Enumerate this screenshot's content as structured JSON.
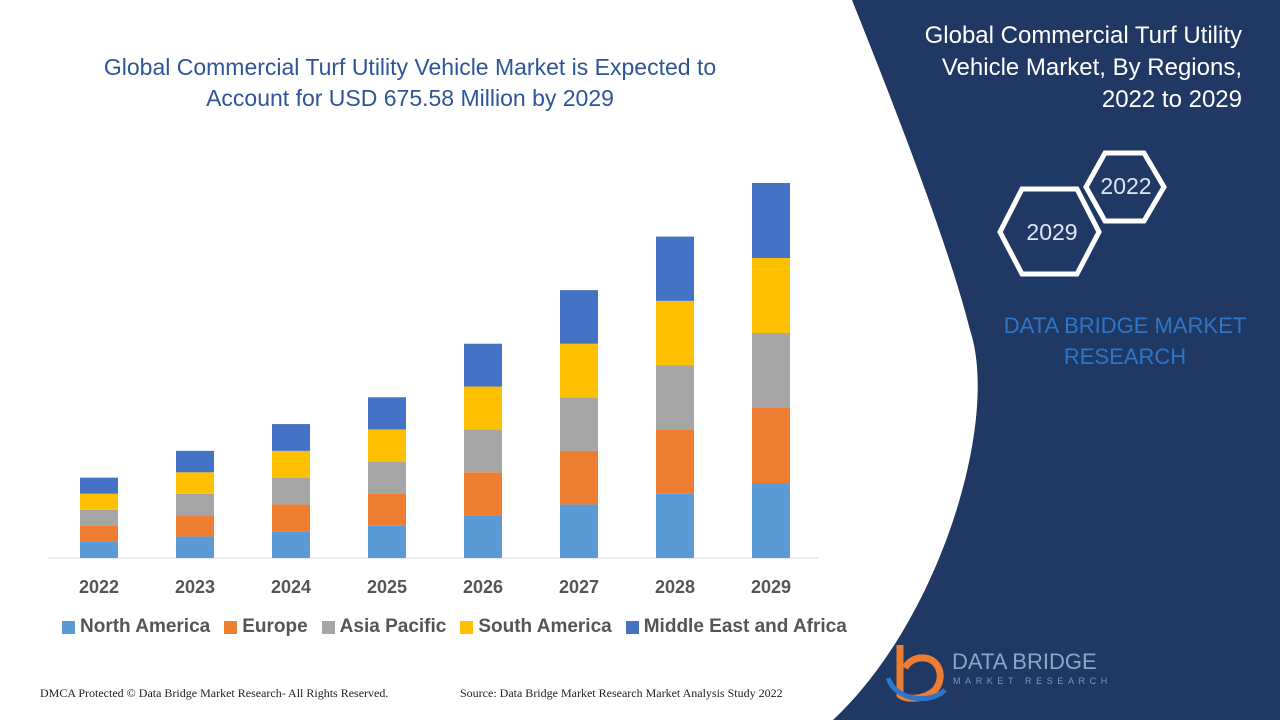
{
  "chart_data": {
    "type": "bar",
    "stacked": true,
    "title": "Global Commercial Turf Utility Vehicle Market is Expected to Account for USD 675.58 Million by 2029",
    "categories": [
      "2022",
      "2023",
      "2024",
      "2025",
      "2026",
      "2027",
      "2028",
      "2029"
    ],
    "series": [
      {
        "name": "North America",
        "color": "#5b9bd5",
        "values": [
          15,
          20,
          25,
          30,
          40,
          50,
          60,
          70
        ]
      },
      {
        "name": "Europe",
        "color": "#ed7d31",
        "values": [
          15,
          20,
          25,
          30,
          40,
          50,
          60,
          70
        ]
      },
      {
        "name": "Asia Pacific",
        "color": "#a5a5a5",
        "values": [
          15,
          20,
          25,
          30,
          40,
          50,
          60,
          70
        ]
      },
      {
        "name": "South America",
        "color": "#ffc000",
        "values": [
          15,
          20,
          25,
          30,
          40,
          50,
          60,
          70
        ]
      },
      {
        "name": "Middle East and Africa",
        "color": "#4472c4",
        "values": [
          15,
          20,
          25,
          30,
          40,
          50,
          60,
          70
        ]
      }
    ],
    "ylim": [
      0,
      350
    ],
    "grid": false,
    "legend": "bottom",
    "xlabel": "",
    "ylabel": ""
  },
  "footer": {
    "copyright": "DMCA Protected © Data Bridge Market Research- All Rights Reserved.",
    "source": "Source: Data Bridge Market Research Market Analysis Study 2022"
  },
  "panel": {
    "title": "Global Commercial Turf Utility Vehicle Market, By Regions, 2022 to 2029",
    "hex_start": "2022",
    "hex_end": "2029",
    "brand": "DATA BRIDGE MARKET RESEARCH",
    "logo_text": "DATA BRIDGE",
    "logo_sub": "MARKET RESEARCH",
    "background_color": "#1f3864"
  }
}
